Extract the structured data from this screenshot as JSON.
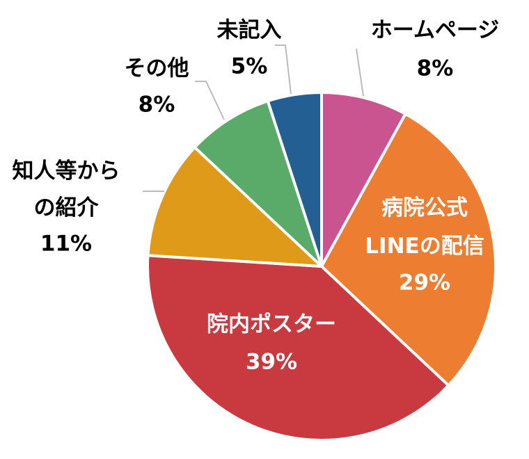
{
  "chart_data": {
    "type": "pie",
    "categories": [
      "ホームページ",
      "病院公式LINEの配信",
      "院内ポスター",
      "知人等からの紹介",
      "その他",
      "未記入"
    ],
    "values": [
      8,
      29,
      39,
      11,
      8,
      5
    ],
    "value_labels": [
      "8%",
      "29%",
      "39%",
      "11%",
      "8%",
      "5%"
    ],
    "colors": [
      "#c9548f",
      "#ed7d31",
      "#c93a40",
      "#e09a19",
      "#5aaa6a",
      "#245f93"
    ]
  }
}
